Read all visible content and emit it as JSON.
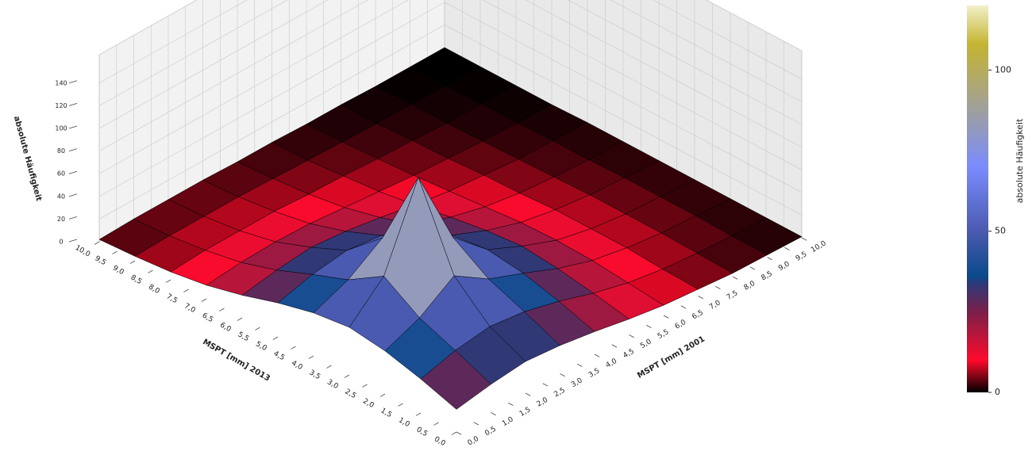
{
  "chart_data": {
    "type": "surface3d",
    "xlabel": "MSPT [mm] 2001",
    "ylabel": "MSPT [mm] 2013",
    "zlabel": "absolute Häufigkeit",
    "colorbar_label": "absolute Häufigkeit",
    "x": [
      0,
      1,
      2,
      3,
      4,
      5,
      6,
      7,
      8,
      9,
      10
    ],
    "y": [
      0,
      1,
      2,
      3,
      4,
      5,
      6,
      7,
      8,
      9,
      10
    ],
    "z": [
      [
        20,
        25,
        28,
        25,
        20,
        14,
        9,
        6,
        3,
        2,
        1
      ],
      [
        30,
        38,
        42,
        38,
        30,
        20,
        12,
        7,
        4,
        2,
        1
      ],
      [
        38,
        50,
        70,
        50,
        38,
        25,
        15,
        9,
        5,
        3,
        1
      ],
      [
        42,
        70,
        140,
        70,
        42,
        28,
        16,
        9,
        5,
        3,
        1
      ],
      [
        38,
        50,
        70,
        50,
        38,
        25,
        15,
        9,
        5,
        3,
        1
      ],
      [
        30,
        38,
        42,
        38,
        30,
        20,
        12,
        7,
        4,
        2,
        1
      ],
      [
        20,
        25,
        28,
        25,
        20,
        14,
        9,
        6,
        3,
        2,
        1
      ],
      [
        12,
        15,
        16,
        15,
        12,
        9,
        6,
        4,
        2,
        1,
        0
      ],
      [
        7,
        9,
        9,
        9,
        7,
        6,
        4,
        3,
        1,
        1,
        0
      ],
      [
        4,
        5,
        5,
        5,
        4,
        3,
        2,
        1,
        1,
        0,
        0
      ],
      [
        2,
        3,
        3,
        3,
        2,
        2,
        1,
        1,
        0,
        0,
        0
      ]
    ],
    "xlim": [
      0,
      10
    ],
    "ylim": [
      0,
      10
    ],
    "zlim": [
      0,
      165
    ],
    "xticks": [
      {
        "value": 0,
        "label": "0,0"
      },
      {
        "value": 0.5,
        "label": "0,5"
      },
      {
        "value": 1,
        "label": "1,0"
      },
      {
        "value": 1.5,
        "label": "1,5"
      },
      {
        "value": 2,
        "label": "2,0"
      },
      {
        "value": 2.5,
        "label": "2,5"
      },
      {
        "value": 3,
        "label": "3,0"
      },
      {
        "value": 3.5,
        "label": "3,5"
      },
      {
        "value": 4,
        "label": "4,0"
      },
      {
        "value": 4.5,
        "label": "4,5"
      },
      {
        "value": 5,
        "label": "5,0"
      },
      {
        "value": 5.5,
        "label": "5,5"
      },
      {
        "value": 6,
        "label": "6,0"
      },
      {
        "value": 6.5,
        "label": "6,5"
      },
      {
        "value": 7,
        "label": "7,0"
      },
      {
        "value": 7.5,
        "label": "7,5"
      },
      {
        "value": 8,
        "label": "8,0"
      },
      {
        "value": 8.5,
        "label": "8,5"
      },
      {
        "value": 9,
        "label": "9,0"
      },
      {
        "value": 9.5,
        "label": "9,5"
      },
      {
        "value": 10,
        "label": "10,0"
      }
    ],
    "yticks": [
      {
        "value": 0,
        "label": "0,0"
      },
      {
        "value": 0.5,
        "label": "0,5"
      },
      {
        "value": 1,
        "label": "1,0"
      },
      {
        "value": 1.5,
        "label": "1,5"
      },
      {
        "value": 2,
        "label": "2,0"
      },
      {
        "value": 2.5,
        "label": "2,5"
      },
      {
        "value": 3,
        "label": "3,0"
      },
      {
        "value": 3.5,
        "label": "3,5"
      },
      {
        "value": 4,
        "label": "4,0"
      },
      {
        "value": 4.5,
        "label": "4,5"
      },
      {
        "value": 5,
        "label": "5,0"
      },
      {
        "value": 5.5,
        "label": "5,5"
      },
      {
        "value": 6,
        "label": "6,0"
      },
      {
        "value": 6.5,
        "label": "6,5"
      },
      {
        "value": 7,
        "label": "7,0"
      },
      {
        "value": 7.5,
        "label": "7,5"
      },
      {
        "value": 8,
        "label": "8,0"
      },
      {
        "value": 8.5,
        "label": "8,5"
      },
      {
        "value": 9,
        "label": "9,0"
      },
      {
        "value": 9.5,
        "label": "9,5"
      },
      {
        "value": 10,
        "label": "10,0"
      }
    ],
    "zticks": [
      0,
      20,
      40,
      60,
      80,
      100,
      120,
      140
    ],
    "clim": [
      0,
      120
    ],
    "cticks": [
      0,
      50,
      100
    ],
    "colorscale": [
      [
        0,
        "#000000"
      ],
      [
        10,
        "#ff0a2a"
      ],
      [
        25,
        "#7a1f4a"
      ],
      [
        34,
        "#2a3a7a"
      ],
      [
        36,
        "#0a4a8a"
      ],
      [
        50,
        "#4a5ab0"
      ],
      [
        70,
        "#7a8cff"
      ],
      [
        90,
        "#a4a290"
      ],
      [
        108,
        "#c4b430"
      ],
      [
        120,
        "#f2f0c8"
      ]
    ],
    "grid": true
  }
}
